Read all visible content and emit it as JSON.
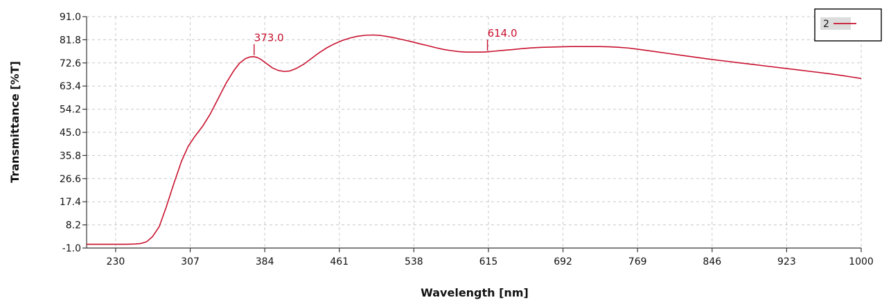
{
  "chart_data": {
    "type": "line",
    "title": "",
    "xlabel": "Wavelength [nm]",
    "ylabel": "Transmittance [%T]",
    "xlim": [
      200,
      1000
    ],
    "ylim": [
      -1.0,
      91.0
    ],
    "x_ticks": [
      230,
      307,
      384,
      461,
      538,
      615,
      692,
      769,
      846,
      923,
      1000
    ],
    "y_ticks": [
      -1.0,
      8.2,
      17.4,
      26.6,
      35.8,
      45.0,
      54.2,
      63.4,
      72.6,
      81.8,
      91.0
    ],
    "grid": true,
    "legend_position": "top-right",
    "colors": {
      "series": "#c8102e",
      "axis": "#333333",
      "grid": "#c8c8c8"
    },
    "series": [
      {
        "name": "2",
        "x": [
          200,
          220,
          240,
          250,
          256,
          262,
          268,
          275,
          282,
          290,
          298,
          305,
          312,
          320,
          328,
          336,
          344,
          352,
          358,
          364,
          368,
          372,
          376,
          380,
          386,
          392,
          398,
          404,
          410,
          416,
          424,
          432,
          440,
          448,
          456,
          464,
          472,
          480,
          488,
          496,
          504,
          512,
          520,
          528,
          536,
          544,
          552,
          560,
          568,
          576,
          584,
          592,
          600,
          608,
          614,
          622,
          630,
          640,
          650,
          660,
          670,
          680,
          690,
          700,
          710,
          720,
          730,
          740,
          750,
          760,
          770,
          785,
          800,
          815,
          830,
          845,
          860,
          875,
          890,
          905,
          920,
          935,
          950,
          965,
          980,
          990,
          1000
        ],
        "y": [
          0.5,
          0.5,
          0.5,
          0.6,
          0.8,
          1.5,
          3.5,
          7.5,
          15.0,
          24.5,
          33.5,
          39.5,
          43.5,
          47.5,
          52.5,
          58.5,
          64.5,
          69.5,
          72.5,
          74.3,
          74.9,
          75.1,
          74.8,
          74.0,
          72.3,
          70.6,
          69.6,
          69.2,
          69.4,
          70.3,
          72.0,
          74.3,
          76.6,
          78.6,
          80.2,
          81.5,
          82.5,
          83.2,
          83.6,
          83.7,
          83.5,
          83.0,
          82.4,
          81.7,
          81.0,
          80.2,
          79.5,
          78.7,
          78.0,
          77.5,
          77.1,
          76.9,
          76.9,
          76.9,
          77.0,
          77.3,
          77.6,
          77.9,
          78.3,
          78.6,
          78.8,
          78.9,
          79.0,
          79.1,
          79.1,
          79.1,
          79.1,
          79.0,
          78.8,
          78.5,
          78.0,
          77.2,
          76.4,
          75.6,
          74.8,
          74.0,
          73.3,
          72.6,
          71.9,
          71.2,
          70.5,
          69.8,
          69.1,
          68.4,
          67.6,
          67.0,
          66.4
        ]
      }
    ],
    "annotations": [
      {
        "x": 373.0,
        "y": 75.1,
        "label": "373.0"
      },
      {
        "x": 614.0,
        "y": 76.9,
        "label": "614.0"
      }
    ]
  }
}
